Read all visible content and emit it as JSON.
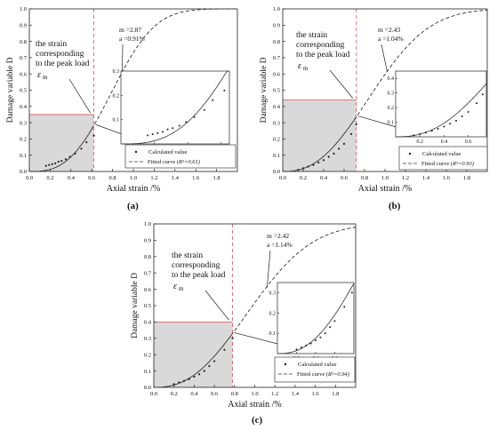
{
  "chart_data": [
    {
      "panel": "(a)",
      "type": "line",
      "xlabel": "Axial strain /%",
      "ylabel": "Damage variable D",
      "xlim": [
        0,
        2.0
      ],
      "ylim": [
        0,
        1.0
      ],
      "xticks": [
        "0.0",
        "0.2",
        "0.4",
        "0.6",
        "0.8",
        "1.0",
        "1.2",
        "1.4",
        "1.6",
        "1.8"
      ],
      "yticks": [
        "0.0",
        "0.1",
        "0.2",
        "0.3",
        "0.4",
        "0.5",
        "0.6",
        "0.7",
        "0.8",
        "0.9",
        "1.0"
      ],
      "m_label": "m =2.87",
      "a_label": "a =0.91%",
      "m": 2.87,
      "a": 0.91,
      "peak_strain": 0.62,
      "peak_D": 0.35,
      "annotation": [
        "the strain",
        "corresponding",
        "to the peak load"
      ],
      "eps_symbol": "ε",
      "eps_sub": "m",
      "legend_calc": "Calculated value",
      "legend_fit_prefix": "Fitted curve (",
      "legend_fit_r2": "R²=0.61)",
      "calculated": [
        [
          0.16,
          0.035
        ],
        [
          0.19,
          0.04
        ],
        [
          0.22,
          0.045
        ],
        [
          0.25,
          0.05
        ],
        [
          0.28,
          0.06
        ],
        [
          0.31,
          0.065
        ],
        [
          0.35,
          0.075
        ],
        [
          0.39,
          0.09
        ],
        [
          0.44,
          0.11
        ],
        [
          0.5,
          0.14
        ],
        [
          0.55,
          0.18
        ],
        [
          0.62,
          0.22
        ]
      ],
      "inset": {
        "xlim": [
          0,
          0.65
        ],
        "ylim": [
          0,
          0.3
        ],
        "xticks": [
          "0.2",
          "0.4",
          "0.6"
        ],
        "yticks": [
          "0.1",
          "0.2",
          "0.3"
        ]
      }
    },
    {
      "panel": "(b)",
      "type": "line",
      "xlabel": "Axial strain /%",
      "ylabel": "Damage variable D",
      "xlim": [
        0,
        2.0
      ],
      "ylim": [
        0,
        1.0
      ],
      "xticks": [
        "0.0",
        "0.2",
        "0.4",
        "0.6",
        "0.8",
        "1.0",
        "1.2",
        "1.4",
        "1.6",
        "1.8"
      ],
      "yticks": [
        "0.0",
        "0.1",
        "0.2",
        "0.3",
        "0.4",
        "0.5",
        "0.6",
        "0.7",
        "0.8",
        "0.9",
        "1.0"
      ],
      "m_label": "m =2.43",
      "a_label": "a =1.04%",
      "m": 2.43,
      "a": 1.04,
      "peak_strain": 0.72,
      "peak_D": 0.44,
      "annotation": [
        "the strain",
        "corresponding",
        "to the peak load"
      ],
      "eps_symbol": "ε",
      "eps_sub": "m",
      "legend_calc": "Calculated value",
      "legend_fit_prefix": "Fitted curve (",
      "legend_fit_r2": "R²=0.93)",
      "calculated": [
        [
          0.15,
          0.01
        ],
        [
          0.2,
          0.02
        ],
        [
          0.25,
          0.03
        ],
        [
          0.3,
          0.04
        ],
        [
          0.35,
          0.055
        ],
        [
          0.4,
          0.07
        ],
        [
          0.45,
          0.09
        ],
        [
          0.5,
          0.11
        ],
        [
          0.55,
          0.14
        ],
        [
          0.6,
          0.17
        ],
        [
          0.67,
          0.23
        ],
        [
          0.72,
          0.29
        ]
      ],
      "inset": {
        "xlim": [
          0,
          0.75
        ],
        "ylim": [
          0,
          0.45
        ],
        "xticks": [
          "0.2",
          "0.4",
          "0.6"
        ],
        "yticks": [
          "0.1",
          "0.2",
          "0.3",
          "0.4"
        ]
      }
    },
    {
      "panel": "(c)",
      "type": "line",
      "xlabel": "Axial strain /%",
      "ylabel": "Damage variable D",
      "xlim": [
        0,
        2.0
      ],
      "ylim": [
        0,
        1.0
      ],
      "xticks": [
        "0.0",
        "0.2",
        "0.4",
        "0.6",
        "0.8",
        "1.0",
        "1.2",
        "1.4",
        "1.6",
        "1.8"
      ],
      "yticks": [
        "0.0",
        "0.1",
        "0.2",
        "0.3",
        "0.4",
        "0.5",
        "0.6",
        "0.7",
        "0.8",
        "0.9",
        "1.0"
      ],
      "m_label": "m =2.42",
      "a_label": "a =1.14%",
      "m": 2.42,
      "a": 1.14,
      "peak_strain": 0.78,
      "peak_D": 0.4,
      "annotation": [
        "the strain",
        "corresponding",
        "to the peak load"
      ],
      "eps_symbol": "ε",
      "eps_sub": "m",
      "legend_calc": "Calculated value",
      "legend_fit_prefix": "Fitted curve (",
      "legend_fit_r2": "R²=0.94)",
      "calculated": [
        [
          0.2,
          0.02
        ],
        [
          0.25,
          0.03
        ],
        [
          0.3,
          0.04
        ],
        [
          0.35,
          0.05
        ],
        [
          0.4,
          0.065
        ],
        [
          0.45,
          0.08
        ],
        [
          0.5,
          0.1
        ],
        [
          0.55,
          0.13
        ],
        [
          0.6,
          0.16
        ],
        [
          0.7,
          0.23
        ],
        [
          0.78,
          0.3
        ]
      ],
      "inset": {
        "xlim": [
          0,
          0.8
        ],
        "ylim": [
          0,
          0.35
        ],
        "xticks": [
          "0.2",
          "0.4",
          "0.6"
        ],
        "yticks": [
          "0.1",
          "0.2",
          "0.3"
        ]
      }
    }
  ]
}
